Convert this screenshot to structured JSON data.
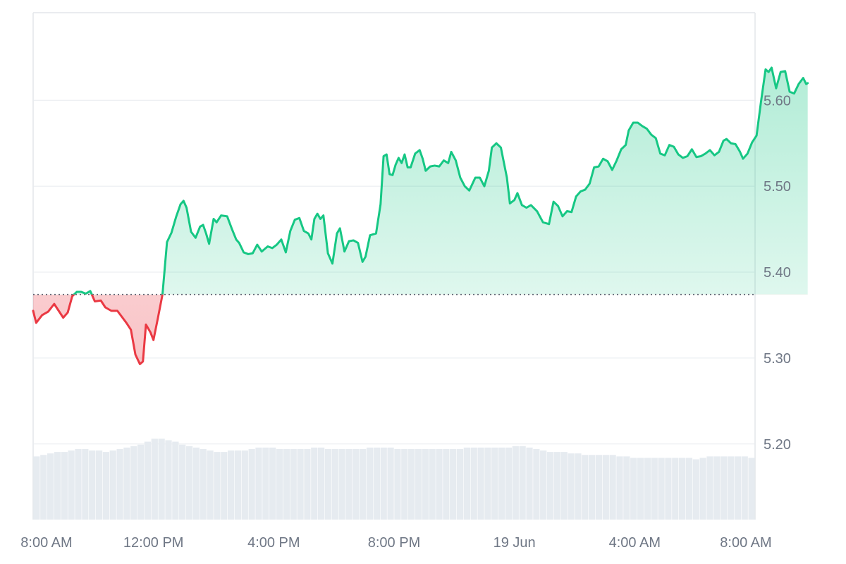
{
  "chart_data": {
    "type": "area",
    "title": "",
    "xlabel": "",
    "ylabel": "",
    "x_ticks": [
      "8:00 AM",
      "12:00 PM",
      "4:00 PM",
      "8:00 PM",
      "19 Jun",
      "4:00 AM",
      "8:00 AM"
    ],
    "y_ticks": [
      "5.20",
      "5.30",
      "5.40",
      "5.50",
      "5.60"
    ],
    "ylim": [
      5.112,
      5.702
    ],
    "x_range_hours": [
      0,
      24
    ],
    "grid": true,
    "baseline": 5.374,
    "colors": {
      "up": "#16c784",
      "down": "#ea3943",
      "grid": "#e8ebef",
      "volume": "#e6ebf0",
      "axis_text": "#6f7785"
    },
    "series": [
      {
        "values": [
          [
            0.0,
            5.355
          ],
          [
            0.1,
            5.341
          ],
          [
            0.3,
            5.35
          ],
          [
            0.5,
            5.354
          ],
          [
            0.7,
            5.363
          ],
          [
            0.85,
            5.355
          ],
          [
            1.0,
            5.347
          ],
          [
            1.15,
            5.353
          ],
          [
            1.3,
            5.372
          ],
          [
            1.45,
            5.377
          ],
          [
            1.6,
            5.377
          ],
          [
            1.75,
            5.375
          ],
          [
            1.9,
            5.378
          ],
          [
            2.05,
            5.366
          ],
          [
            2.25,
            5.367
          ],
          [
            2.4,
            5.359
          ],
          [
            2.6,
            5.355
          ],
          [
            2.8,
            5.355
          ],
          [
            2.95,
            5.348
          ],
          [
            3.1,
            5.341
          ],
          [
            3.25,
            5.333
          ],
          [
            3.4,
            5.304
          ],
          [
            3.55,
            5.293
          ],
          [
            3.65,
            5.296
          ],
          [
            3.75,
            5.339
          ],
          [
            3.9,
            5.33
          ],
          [
            4.0,
            5.321
          ],
          [
            4.15,
            5.347
          ],
          [
            4.3,
            5.374
          ],
          [
            4.45,
            5.435
          ],
          [
            4.6,
            5.446
          ],
          [
            4.75,
            5.464
          ],
          [
            4.9,
            5.479
          ],
          [
            5.0,
            5.483
          ],
          [
            5.1,
            5.475
          ],
          [
            5.25,
            5.447
          ],
          [
            5.4,
            5.44
          ],
          [
            5.55,
            5.453
          ],
          [
            5.65,
            5.455
          ],
          [
            5.75,
            5.445
          ],
          [
            5.85,
            5.433
          ],
          [
            6.0,
            5.462
          ],
          [
            6.1,
            5.458
          ],
          [
            6.25,
            5.466
          ],
          [
            6.45,
            5.465
          ],
          [
            6.6,
            5.451
          ],
          [
            6.75,
            5.438
          ],
          [
            6.85,
            5.434
          ],
          [
            7.0,
            5.423
          ],
          [
            7.15,
            5.421
          ],
          [
            7.3,
            5.422
          ],
          [
            7.45,
            5.432
          ],
          [
            7.6,
            5.424
          ],
          [
            7.8,
            5.43
          ],
          [
            7.95,
            5.428
          ],
          [
            8.1,
            5.432
          ],
          [
            8.25,
            5.438
          ],
          [
            8.4,
            5.423
          ],
          [
            8.55,
            5.448
          ],
          [
            8.7,
            5.461
          ],
          [
            8.85,
            5.463
          ],
          [
            9.0,
            5.448
          ],
          [
            9.15,
            5.445
          ],
          [
            9.25,
            5.438
          ],
          [
            9.35,
            5.462
          ],
          [
            9.45,
            5.468
          ],
          [
            9.55,
            5.462
          ],
          [
            9.65,
            5.466
          ],
          [
            9.8,
            5.422
          ],
          [
            9.95,
            5.41
          ],
          [
            10.1,
            5.445
          ],
          [
            10.2,
            5.451
          ],
          [
            10.35,
            5.424
          ],
          [
            10.5,
            5.436
          ],
          [
            10.65,
            5.437
          ],
          [
            10.8,
            5.434
          ],
          [
            10.95,
            5.412
          ],
          [
            11.05,
            5.418
          ],
          [
            11.2,
            5.443
          ],
          [
            11.4,
            5.445
          ],
          [
            11.55,
            5.479
          ],
          [
            11.65,
            5.535
          ],
          [
            11.75,
            5.537
          ],
          [
            11.85,
            5.514
          ],
          [
            11.95,
            5.513
          ],
          [
            12.05,
            5.525
          ],
          [
            12.15,
            5.533
          ],
          [
            12.25,
            5.527
          ],
          [
            12.35,
            5.537
          ],
          [
            12.45,
            5.522
          ],
          [
            12.55,
            5.522
          ],
          [
            12.7,
            5.538
          ],
          [
            12.85,
            5.542
          ],
          [
            12.95,
            5.532
          ],
          [
            13.05,
            5.518
          ],
          [
            13.2,
            5.523
          ],
          [
            13.35,
            5.524
          ],
          [
            13.5,
            5.523
          ],
          [
            13.65,
            5.53
          ],
          [
            13.8,
            5.527
          ],
          [
            13.9,
            5.54
          ],
          [
            14.05,
            5.53
          ],
          [
            14.2,
            5.51
          ],
          [
            14.35,
            5.5
          ],
          [
            14.5,
            5.495
          ],
          [
            14.7,
            5.51
          ],
          [
            14.85,
            5.51
          ],
          [
            15.0,
            5.5
          ],
          [
            15.15,
            5.518
          ],
          [
            15.25,
            5.545
          ],
          [
            15.4,
            5.55
          ],
          [
            15.55,
            5.545
          ],
          [
            15.75,
            5.51
          ],
          [
            15.85,
            5.48
          ],
          [
            16.0,
            5.484
          ],
          [
            16.1,
            5.492
          ],
          [
            16.25,
            5.478
          ],
          [
            16.4,
            5.475
          ],
          [
            16.55,
            5.478
          ],
          [
            16.75,
            5.471
          ],
          [
            16.95,
            5.458
          ],
          [
            17.15,
            5.456
          ],
          [
            17.3,
            5.482
          ],
          [
            17.45,
            5.477
          ],
          [
            17.6,
            5.465
          ],
          [
            17.75,
            5.471
          ],
          [
            17.9,
            5.47
          ],
          [
            18.05,
            5.488
          ],
          [
            18.2,
            5.494
          ],
          [
            18.35,
            5.496
          ],
          [
            18.5,
            5.503
          ],
          [
            18.65,
            5.522
          ],
          [
            18.8,
            5.523
          ],
          [
            18.95,
            5.532
          ],
          [
            19.1,
            5.529
          ],
          [
            19.25,
            5.519
          ],
          [
            19.4,
            5.53
          ],
          [
            19.55,
            5.543
          ],
          [
            19.7,
            5.548
          ],
          [
            19.8,
            5.565
          ],
          [
            19.95,
            5.574
          ],
          [
            20.1,
            5.574
          ],
          [
            20.25,
            5.57
          ],
          [
            20.4,
            5.567
          ],
          [
            20.55,
            5.56
          ],
          [
            20.7,
            5.556
          ],
          [
            20.85,
            5.538
          ],
          [
            21.0,
            5.536
          ],
          [
            21.15,
            5.548
          ],
          [
            21.3,
            5.546
          ],
          [
            21.45,
            5.537
          ],
          [
            21.6,
            5.533
          ],
          [
            21.75,
            5.535
          ],
          [
            21.9,
            5.543
          ],
          [
            22.05,
            5.534
          ],
          [
            22.2,
            5.535
          ],
          [
            22.35,
            5.538
          ],
          [
            22.5,
            5.542
          ],
          [
            22.65,
            5.536
          ],
          [
            22.8,
            5.54
          ],
          [
            22.95,
            5.553
          ],
          [
            23.05,
            5.555
          ],
          [
            23.2,
            5.55
          ],
          [
            23.35,
            5.549
          ],
          [
            23.5,
            5.54
          ],
          [
            23.6,
            5.532
          ],
          [
            23.75,
            5.538
          ],
          [
            23.9,
            5.551
          ],
          [
            24.05,
            5.559
          ],
          [
            24.2,
            5.599
          ],
          [
            24.35,
            5.636
          ],
          [
            24.45,
            5.633
          ],
          [
            24.55,
            5.638
          ],
          [
            24.7,
            5.614
          ],
          [
            24.85,
            5.633
          ],
          [
            25.0,
            5.634
          ],
          [
            25.15,
            5.61
          ],
          [
            25.3,
            5.608
          ],
          [
            25.45,
            5.619
          ],
          [
            25.6,
            5.626
          ],
          [
            25.7,
            5.619
          ],
          [
            25.75,
            5.62
          ]
        ]
      }
    ],
    "volume": [
      0.43,
      0.44,
      0.45,
      0.46,
      0.46,
      0.47,
      0.48,
      0.48,
      0.47,
      0.47,
      0.46,
      0.47,
      0.48,
      0.49,
      0.5,
      0.51,
      0.53,
      0.55,
      0.55,
      0.54,
      0.53,
      0.51,
      0.5,
      0.49,
      0.48,
      0.47,
      0.46,
      0.46,
      0.47,
      0.47,
      0.47,
      0.48,
      0.49,
      0.49,
      0.49,
      0.48,
      0.48,
      0.48,
      0.48,
      0.48,
      0.49,
      0.49,
      0.48,
      0.48,
      0.48,
      0.48,
      0.48,
      0.48,
      0.49,
      0.49,
      0.49,
      0.49,
      0.48,
      0.48,
      0.48,
      0.48,
      0.48,
      0.48,
      0.48,
      0.48,
      0.48,
      0.48,
      0.49,
      0.49,
      0.49,
      0.49,
      0.49,
      0.49,
      0.49,
      0.5,
      0.5,
      0.49,
      0.48,
      0.47,
      0.46,
      0.46,
      0.46,
      0.45,
      0.45,
      0.44,
      0.44,
      0.44,
      0.44,
      0.44,
      0.43,
      0.43,
      0.42,
      0.42,
      0.42,
      0.42,
      0.42,
      0.42,
      0.42,
      0.42,
      0.42,
      0.41,
      0.42,
      0.43,
      0.43,
      0.43,
      0.43,
      0.43,
      0.43,
      0.42
    ]
  }
}
